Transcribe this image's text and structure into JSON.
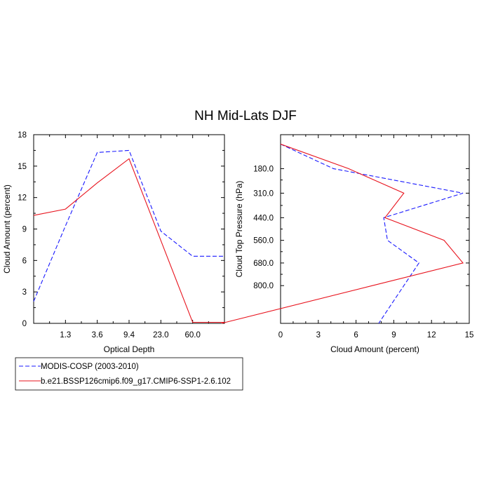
{
  "figure": {
    "title": "NH Mid-Lats DJF"
  },
  "colors": {
    "modis": "#1a1aff",
    "model": "#e8141e"
  },
  "legend": {
    "placement": "bottom-left",
    "entries": [
      {
        "label": "MODIS-COSP (2003-2010)",
        "style": "dashed",
        "color": "#1a1aff"
      },
      {
        "label": "b.e21.BSSP126cmip6.f09_g17.CMIP6-SSP1-2.6.102",
        "style": "solid",
        "color": "#e8141e"
      }
    ]
  },
  "chart_data": [
    {
      "type": "line",
      "xlabel": "Optical Depth",
      "ylabel": "Cloud Amount (percent)",
      "x_tick_labels": [
        "1.3",
        "3.6",
        "9.4",
        "23.0",
        "60.0"
      ],
      "x_tick_positions": [
        1,
        2,
        3,
        4,
        5
      ],
      "xlim": [
        0,
        6
      ],
      "ylim": [
        0,
        18
      ],
      "y_ticks": [
        0,
        3,
        6,
        9,
        12,
        15,
        18
      ],
      "series": [
        {
          "name": "MODIS-COSP (2003-2010)",
          "style": "dashed",
          "color": "#1a1aff",
          "x": [
            0,
            1,
            2,
            3,
            4,
            5,
            6
          ],
          "y": [
            2.1,
            9.3,
            16.3,
            16.5,
            8.8,
            6.4,
            6.4
          ]
        },
        {
          "name": "b.e21.BSSP126cmip6.f09_g17.CMIP6-SSP1-2.6.102",
          "style": "solid",
          "color": "#e8141e",
          "x": [
            0,
            1,
            2,
            3,
            4,
            5,
            6
          ],
          "y": [
            10.3,
            10.9,
            13.4,
            15.7,
            7.9,
            0.1,
            0.1
          ]
        }
      ]
    },
    {
      "type": "line",
      "xlabel": "Cloud Amount (percent)",
      "ylabel": "Cloud Top Pressure (hPa)",
      "xlim": [
        0,
        15
      ],
      "x_ticks": [
        0,
        3,
        6,
        9,
        12,
        15
      ],
      "ylim": [
        1000,
        0
      ],
      "y_tick_labels": [
        "180.0",
        "310.0",
        "440.0",
        "560.0",
        "680.0",
        "800.0"
      ],
      "y_tick_values": [
        180,
        310,
        440,
        560,
        680,
        800
      ],
      "series": [
        {
          "name": "MODIS-COSP (2003-2010)",
          "style": "dashed",
          "color": "#1a1aff",
          "pressure": [
            50,
            180,
            310,
            440,
            560,
            680,
            800
          ],
          "x": [
            0,
            4.2,
            14.5,
            8.2,
            8.5,
            11.0,
            9.8
          ]
        },
        {
          "name": "b.e21.BSSP126cmip6.f09_g17.CMIP6-SSP1-2.6.102",
          "style": "solid",
          "color": "#e8141e",
          "pressure": [
            50,
            180,
            310,
            440,
            560,
            680,
            800
          ],
          "x": [
            0,
            5.4,
            9.8,
            8.3,
            13.0,
            14.5,
            7.3
          ]
        }
      ]
    }
  ]
}
